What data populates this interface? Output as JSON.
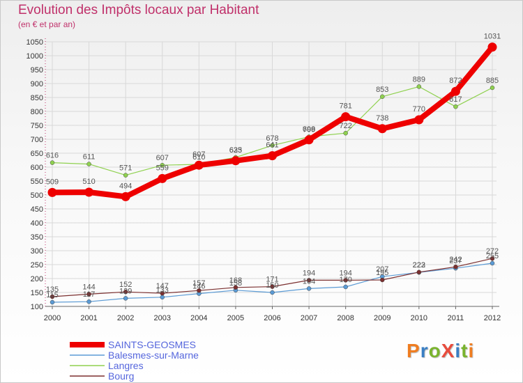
{
  "title": "Evolution des Impôts locaux par Habitant",
  "subtitle": "(en € et par an)",
  "logo": {
    "text": "ProXiti",
    "colors": [
      "#ef7d21",
      "#3a7fc4",
      "#7ab42e",
      "#e84c3d",
      "#3a7fc4",
      "#7ab42e",
      "#ef7d21"
    ]
  },
  "chart_data": {
    "type": "line",
    "title": "Evolution des Impôts locaux par Habitant",
    "ylabel": "(en € et par an)",
    "xlabel": "",
    "ylim": [
      100,
      1050
    ],
    "yticks": [
      100,
      150,
      200,
      250,
      300,
      350,
      400,
      450,
      500,
      550,
      600,
      650,
      700,
      750,
      800,
      850,
      900,
      950,
      1000,
      1050
    ],
    "categories": [
      "2000",
      "2001",
      "2002",
      "2003",
      "2004",
      "2005",
      "2006",
      "2007",
      "2008",
      "2009",
      "2010",
      "2011",
      "2012"
    ],
    "series": [
      {
        "name": "SAINTS-GEOSMES",
        "color": "#ee0000",
        "values": [
          509,
          510,
          494,
          559,
          607,
          623,
          641,
          698,
          781,
          738,
          770,
          872,
          1031
        ]
      },
      {
        "name": "Balesmes-sur-Marne",
        "color": "#5b9bd5",
        "values": [
          115,
          117,
          129,
          133,
          146,
          158,
          150,
          164,
          170,
          207,
          222,
          237,
          255
        ]
      },
      {
        "name": "Langres",
        "color": "#8fd14f",
        "values": [
          616,
          611,
          571,
          607,
          610,
          635,
          678,
          709,
          722,
          853,
          889,
          817,
          885
        ]
      },
      {
        "name": "Bourg",
        "color": "#7b2f2f",
        "values": [
          135,
          144,
          152,
          147,
          157,
          168,
          171,
          194,
          194,
          195,
          223,
          242,
          272
        ]
      }
    ]
  }
}
